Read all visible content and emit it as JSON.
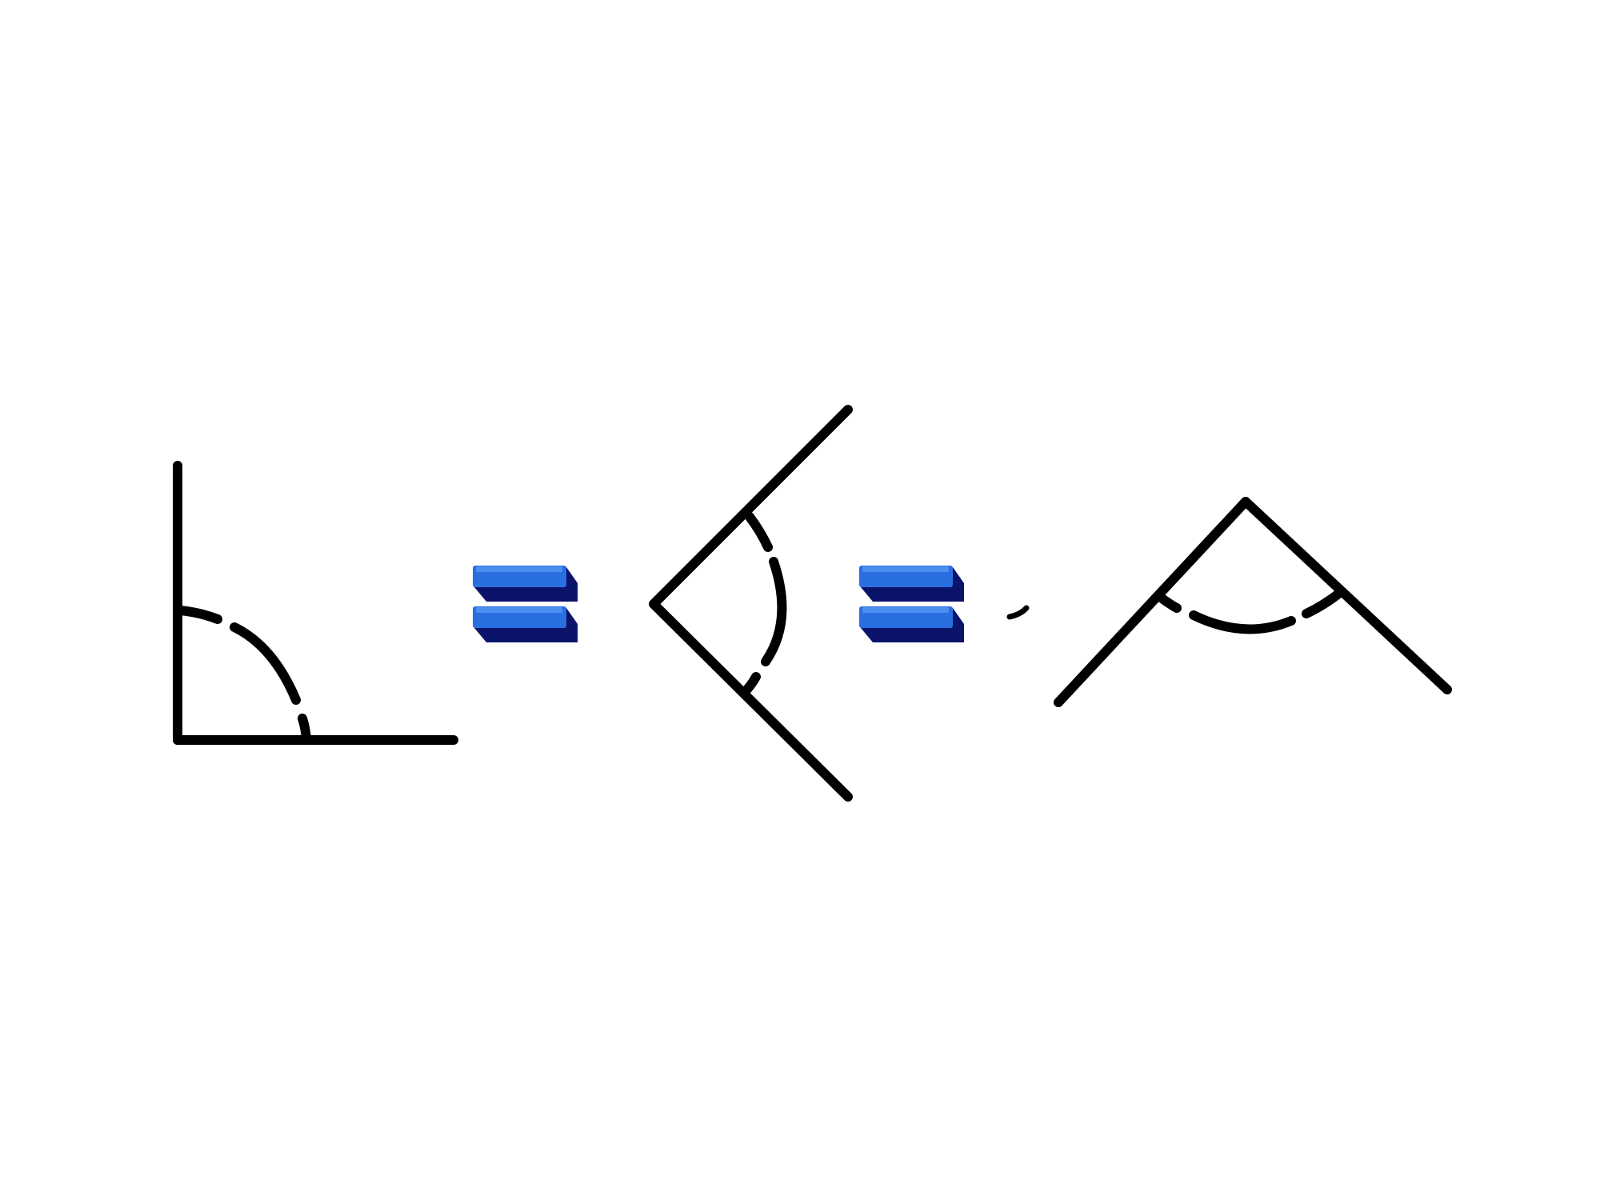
{
  "figure": {
    "description_type": "angle-equivalence-diagram",
    "background_color": "#ffffff",
    "line_color": "#000000",
    "equals_front_color": "#2a6fe0",
    "equals_top_color": "#4b8ff0",
    "equals_side_color": "#0b136b",
    "angles": [
      {
        "name": "right-angle-figure",
        "measure_marks": "dashed-arc"
      },
      {
        "name": "sideways-angle-figure",
        "measure_marks": "dashed-arc"
      },
      {
        "name": "upward-angle-figure",
        "measure_marks": "dashed-arc"
      }
    ],
    "operators": [
      {
        "name": "equals-sign-1",
        "symbol": "="
      },
      {
        "name": "equals-sign-2",
        "symbol": "="
      }
    ]
  }
}
